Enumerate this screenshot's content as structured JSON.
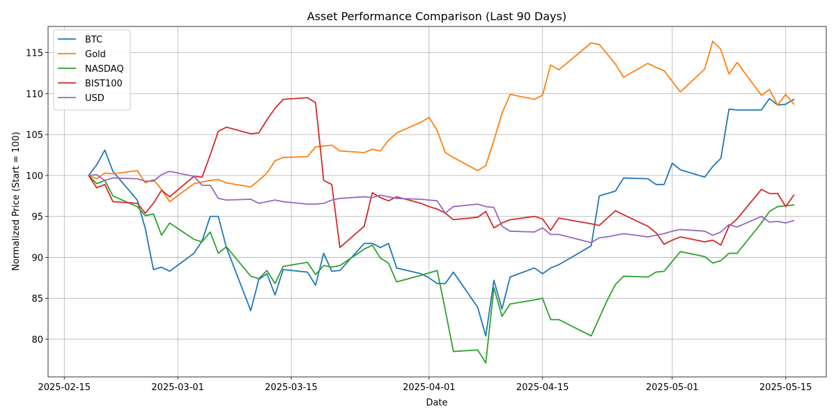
{
  "chart_data": {
    "type": "line",
    "title": "Asset Performance Comparison (Last 90 Days)",
    "xlabel": "Date",
    "ylabel": "Normalized Price (Start = 100)",
    "xlim": [
      "2025-02-13",
      "2025-05-20"
    ],
    "ylim": [
      75.4,
      118.2
    ],
    "grid": true,
    "legend_placement": "upper-left",
    "x_ticks": [
      {
        "date": "2025-02-15",
        "label": "2025-02-15"
      },
      {
        "date": "2025-03-01",
        "label": "2025-03-01"
      },
      {
        "date": "2025-03-15",
        "label": "2025-03-15"
      },
      {
        "date": "2025-04-01",
        "label": "2025-04-01"
      },
      {
        "date": "2025-04-15",
        "label": "2025-04-15"
      },
      {
        "date": "2025-05-01",
        "label": "2025-05-01"
      },
      {
        "date": "2025-05-15",
        "label": "2025-05-15"
      }
    ],
    "y_ticks": [
      {
        "value": 80,
        "label": "80"
      },
      {
        "value": 85,
        "label": "85"
      },
      {
        "value": 90,
        "label": "90"
      },
      {
        "value": 95,
        "label": "95"
      },
      {
        "value": 100,
        "label": "100"
      },
      {
        "value": 105,
        "label": "105"
      },
      {
        "value": 110,
        "label": "110"
      },
      {
        "value": 115,
        "label": "115"
      }
    ],
    "x": [
      "2025-02-18",
      "2025-02-19",
      "2025-02-20",
      "2025-02-21",
      "2025-02-24",
      "2025-02-25",
      "2025-02-26",
      "2025-02-27",
      "2025-02-28",
      "2025-03-03",
      "2025-03-04",
      "2025-03-05",
      "2025-03-06",
      "2025-03-07",
      "2025-03-10",
      "2025-03-11",
      "2025-03-12",
      "2025-03-13",
      "2025-03-14",
      "2025-03-17",
      "2025-03-18",
      "2025-03-19",
      "2025-03-20",
      "2025-03-21",
      "2025-03-24",
      "2025-03-25",
      "2025-03-26",
      "2025-03-27",
      "2025-03-28",
      "2025-03-31",
      "2025-04-01",
      "2025-04-02",
      "2025-04-03",
      "2025-04-04",
      "2025-04-07",
      "2025-04-08",
      "2025-04-09",
      "2025-04-10",
      "2025-04-11",
      "2025-04-14",
      "2025-04-15",
      "2025-04-16",
      "2025-04-17",
      "2025-04-21",
      "2025-04-22",
      "2025-04-23",
      "2025-04-24",
      "2025-04-25",
      "2025-04-28",
      "2025-04-29",
      "2025-04-30",
      "2025-05-01",
      "2025-05-02",
      "2025-05-05",
      "2025-05-06",
      "2025-05-07",
      "2025-05-08",
      "2025-05-09",
      "2025-05-12",
      "2025-05-13",
      "2025-05-14",
      "2025-05-15",
      "2025-05-16"
    ],
    "series": [
      {
        "name": "BTC",
        "color": "#1f77b4",
        "values": [
          100,
          101.3,
          103.1,
          100.5,
          97.0,
          93.5,
          88.5,
          88.8,
          88.3,
          90.5,
          92.0,
          95.0,
          95.0,
          91.2,
          83.5,
          87.3,
          88.0,
          85.4,
          88.5,
          88.2,
          86.6,
          90.5,
          88.3,
          88.4,
          91.7,
          91.7,
          91.2,
          91.7,
          88.7,
          88.0,
          87.5,
          86.8,
          86.8,
          88.2,
          83.9,
          80.4,
          87.2,
          83.7,
          87.6,
          88.7,
          88.0,
          88.7,
          89.1,
          91.4,
          97.5,
          97.8,
          98.1,
          99.7,
          99.6,
          98.9,
          98.9,
          101.5,
          100.7,
          99.8,
          101.1,
          102.1,
          108.1,
          108.0,
          108.0,
          109.4,
          108.6,
          108.7,
          109.3
        ]
      },
      {
        "name": "Gold",
        "color": "#ff7f0e",
        "values": [
          100,
          99.6,
          100.3,
          100.2,
          100.6,
          99.1,
          99.5,
          98.3,
          96.8,
          99.0,
          99.2,
          99.4,
          99.5,
          99.1,
          98.6,
          99.4,
          100.3,
          101.8,
          102.2,
          102.3,
          103.5,
          103.6,
          103.7,
          103.0,
          102.8,
          103.2,
          103.0,
          104.3,
          105.2,
          106.5,
          107.1,
          105.5,
          102.8,
          102.2,
          100.6,
          101.2,
          104.3,
          107.6,
          109.9,
          109.3,
          109.8,
          113.5,
          112.9,
          116.2,
          116.0,
          114.8,
          113.6,
          112.0,
          113.7,
          113.2,
          112.8,
          111.5,
          110.2,
          113.0,
          116.4,
          115.4,
          112.4,
          113.8,
          109.8,
          110.5,
          108.6,
          109.9,
          108.7
        ]
      },
      {
        "name": "NASDAQ",
        "color": "#2ca02c",
        "values": [
          100,
          99.0,
          99.4,
          97.5,
          96.2,
          95.1,
          95.3,
          92.7,
          94.2,
          92.2,
          91.9,
          93.1,
          90.5,
          91.3,
          87.7,
          87.4,
          88.4,
          86.8,
          88.9,
          89.4,
          87.9,
          89.0,
          88.8,
          89.0,
          91.0,
          91.5,
          89.9,
          89.3,
          87.0,
          87.8,
          88.1,
          88.4,
          83.6,
          78.5,
          78.7,
          77.1,
          86.3,
          82.8,
          84.3,
          84.8,
          85.0,
          82.4,
          82.4,
          80.4,
          82.6,
          84.8,
          86.7,
          87.7,
          87.6,
          88.2,
          88.3,
          89.5,
          90.7,
          90.1,
          89.3,
          89.6,
          90.5,
          90.5,
          94.2,
          95.6,
          96.2,
          96.3,
          96.4
        ]
      },
      {
        "name": "BIST100",
        "color": "#d62728",
        "values": [
          100,
          98.5,
          98.9,
          96.8,
          96.6,
          95.4,
          96.6,
          98.2,
          97.4,
          99.9,
          99.8,
          102.5,
          105.4,
          105.9,
          105.1,
          105.2,
          106.8,
          108.2,
          109.3,
          109.5,
          108.9,
          99.4,
          98.9,
          91.2,
          93.8,
          97.9,
          97.3,
          96.9,
          97.4,
          96.6,
          96.2,
          95.9,
          95.4,
          94.6,
          94.9,
          95.6,
          93.6,
          94.2,
          94.6,
          95.0,
          94.7,
          93.3,
          94.8,
          94.1,
          93.9,
          94.8,
          95.7,
          95.2,
          93.8,
          93.0,
          91.6,
          92.1,
          92.5,
          91.9,
          92.1,
          91.5,
          93.8,
          94.7,
          98.3,
          97.8,
          97.8,
          96.2,
          97.6
        ]
      },
      {
        "name": "USD",
        "color": "#9467bd",
        "values": [
          100,
          100.1,
          99.4,
          99.7,
          99.6,
          99.3,
          99.3,
          100.1,
          100.5,
          99.9,
          98.8,
          98.8,
          97.2,
          97.0,
          97.1,
          96.6,
          96.8,
          97.0,
          96.8,
          96.5,
          96.5,
          96.6,
          97.0,
          97.2,
          97.4,
          97.3,
          97.6,
          97.4,
          97.2,
          97.1,
          97.0,
          96.9,
          95.4,
          96.2,
          96.5,
          96.2,
          96.1,
          93.8,
          93.2,
          93.1,
          93.6,
          92.8,
          92.8,
          91.8,
          92.4,
          92.5,
          92.7,
          92.9,
          92.5,
          92.7,
          92.9,
          93.2,
          93.4,
          93.2,
          92.7,
          93.1,
          94.0,
          93.7,
          95.0,
          94.3,
          94.4,
          94.2,
          94.5
        ]
      }
    ]
  }
}
